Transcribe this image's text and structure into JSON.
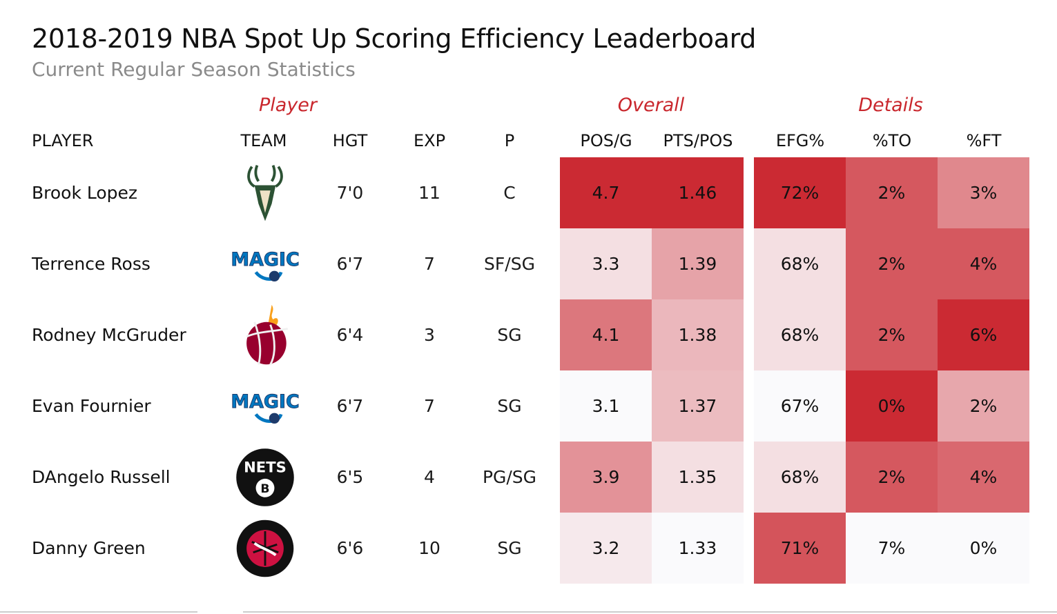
{
  "title": "2018-2019 NBA Spot Up Scoring Efficiency Leaderboard",
  "subtitle": "Current Regular Season Statistics",
  "colors": {
    "accent": "#c9272d",
    "heat_max": "#cb2a33",
    "heat_min": "#fafafc"
  },
  "chart_data": {
    "type": "table",
    "group_headers": {
      "player": "Player",
      "overall": "Overall",
      "details": "Details"
    },
    "columns": {
      "player": "PLAYER",
      "team": "TEAM",
      "hgt": "HGT",
      "exp": "EXP",
      "pos": "P",
      "posg": "POS/G",
      "ptspos": "PTS/POS",
      "efg": "EFG%",
      "to": "%TO",
      "ft": "%FT"
    },
    "rows": [
      {
        "player": "Brook Lopez",
        "team_logo": "bucks-logo-icon",
        "hgt": "7'0",
        "exp": "11",
        "pos": "C",
        "posg": "4.7",
        "ptspos": "1.46",
        "efg": "72%",
        "to": "2%",
        "ft": "3%",
        "heat": {
          "posg": 1.0,
          "ptspos": 1.0,
          "efg": 1.0,
          "to": 0.78,
          "ft": 0.55
        }
      },
      {
        "player": "Terrence Ross",
        "team_logo": "magic-logo-icon",
        "hgt": "6'7",
        "exp": "7",
        "pos": "SF/SG",
        "posg": "3.3",
        "ptspos": "1.39",
        "efg": "68%",
        "to": "2%",
        "ft": "4%",
        "heat": {
          "posg": 0.13,
          "ptspos": 0.42,
          "efg": 0.13,
          "to": 0.78,
          "ft": 0.78
        }
      },
      {
        "player": "Rodney McGruder",
        "team_logo": "heat-logo-icon",
        "hgt": "6'4",
        "exp": "3",
        "pos": "SG",
        "posg": "4.1",
        "ptspos": "1.38",
        "efg": "68%",
        "to": "2%",
        "ft": "6%",
        "heat": {
          "posg": 0.63,
          "ptspos": 0.32,
          "efg": 0.13,
          "to": 0.78,
          "ft": 1.0
        }
      },
      {
        "player": "Evan Fournier",
        "team_logo": "magic-logo-icon",
        "hgt": "6'7",
        "exp": "7",
        "pos": "SG",
        "posg": "3.1",
        "ptspos": "1.37",
        "efg": "67%",
        "to": "0%",
        "ft": "2%",
        "heat": {
          "posg": 0.0,
          "ptspos": 0.3,
          "efg": 0.0,
          "to": 1.0,
          "ft": 0.4
        }
      },
      {
        "player": "DAngelo Russell",
        "team_logo": "nets-logo-icon",
        "hgt": "6'5",
        "exp": "4",
        "pos": "PG/SG",
        "posg": "3.9",
        "ptspos": "1.35",
        "efg": "68%",
        "to": "2%",
        "ft": "4%",
        "heat": {
          "posg": 0.5,
          "ptspos": 0.13,
          "efg": 0.13,
          "to": 0.78,
          "ft": 0.7
        }
      },
      {
        "player": "Danny Green",
        "team_logo": "raptors-logo-icon",
        "hgt": "6'6",
        "exp": "10",
        "pos": "SG",
        "posg": "3.2",
        "ptspos": "1.33",
        "efg": "71%",
        "to": "7%",
        "ft": "0%",
        "heat": {
          "posg": 0.08,
          "ptspos": 0.0,
          "efg": 0.8,
          "to": 0.0,
          "ft": 0.0
        }
      }
    ]
  }
}
